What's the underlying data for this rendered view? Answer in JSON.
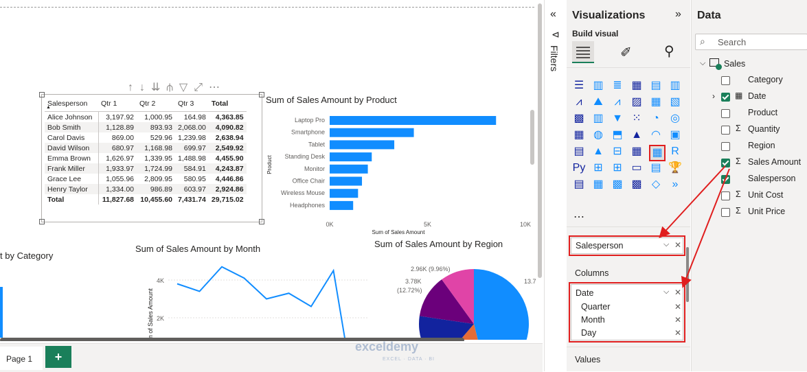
{
  "table": {
    "headers": [
      "Salesperson",
      "Qtr 1",
      "Qtr 2",
      "Qtr 3",
      "Total"
    ],
    "rows": [
      [
        "Alice Johnson",
        "3,197.92",
        "1,000.95",
        "164.98",
        "4,363.85"
      ],
      [
        "Bob Smith",
        "1,128.89",
        "893.93",
        "2,068.00",
        "4,090.82"
      ],
      [
        "Carol Davis",
        "869.00",
        "529.96",
        "1,239.98",
        "2,638.94"
      ],
      [
        "David Wilson",
        "680.97",
        "1,168.98",
        "699.97",
        "2,549.92"
      ],
      [
        "Emma Brown",
        "1,626.97",
        "1,339.95",
        "1,488.98",
        "4,455.90"
      ],
      [
        "Frank Miller",
        "1,933.97",
        "1,724.99",
        "584.91",
        "4,243.87"
      ],
      [
        "Grace Lee",
        "1,055.96",
        "2,809.95",
        "580.95",
        "4,446.86"
      ],
      [
        "Henry Taylor",
        "1,334.00",
        "986.89",
        "603.97",
        "2,924.86"
      ]
    ],
    "total": [
      "Total",
      "11,827.68",
      "10,455.60",
      "7,431.74",
      "29,715.02"
    ]
  },
  "bar_chart": {
    "title": "Sum of Sales Amount by Product",
    "ylabel": "Product",
    "xlabel": "Sum of Sales Amount",
    "ticks": [
      "0K",
      "5K",
      "10K"
    ],
    "bar_color": "#118dff"
  },
  "chart_data": [
    {
      "type": "bar",
      "orientation": "horizontal",
      "title": "Sum of Sales Amount by Product",
      "xlabel": "Sum of Sales Amount",
      "ylabel": "Product",
      "categories": [
        "Laptop Pro",
        "Smartphone",
        "Tablet",
        "Standing Desk",
        "Monitor",
        "Office Chair",
        "Wireless Mouse",
        "Headphones"
      ],
      "values": [
        8500,
        4300,
        3300,
        2150,
        1950,
        1650,
        1450,
        1200
      ],
      "xlim": [
        0,
        10000
      ]
    },
    {
      "type": "line",
      "title": "Sum of Sales Amount by Month",
      "ylabel": "Sum of Sales Amount",
      "values": [
        3800,
        3400,
        4700,
        4100,
        3000,
        3300,
        2600,
        4500,
        0
      ],
      "ylim": [
        0,
        5000
      ]
    },
    {
      "type": "pie",
      "title": "Sum of Sales Amount by Region",
      "slices": [
        {
          "label": "2.96K (9.96%)",
          "value": 2.96,
          "color": "#e044a7"
        },
        {
          "label": "3.78K (12.72%)",
          "value": 3.78,
          "color": "#6b007b"
        },
        {
          "label": "13.7",
          "value": 13.7,
          "color": "#118dff"
        },
        {
          "label": "",
          "value": 4.5,
          "color": "#e66c37"
        },
        {
          "label": "",
          "value": 4.77,
          "color": "#12239e"
        }
      ]
    }
  ],
  "line_chart": {
    "title": "Sum of Sales Amount by Month",
    "ylabel": "m of Sales Amount",
    "ticks": [
      "4K",
      "2K"
    ]
  },
  "pie_chart": {
    "title": "Sum of Sales Amount by Region",
    "labels": [
      "2.96K (9.96%)",
      "3.78K",
      "(12.72%)",
      "13.7"
    ]
  },
  "category_title": "t by Category",
  "filters": {
    "label": "Filters"
  },
  "viz": {
    "title": "Visualizations",
    "build_visual": "Build visual",
    "rows_well": "Salesperson",
    "columns_label": "Columns",
    "columns_field": "Date",
    "columns_sub": [
      "Quarter",
      "Month",
      "Day"
    ],
    "values_label": "Values"
  },
  "data_pane": {
    "title": "Data",
    "search_placeholder": "Search",
    "table": "Sales",
    "fields": [
      {
        "name": "Category",
        "checked": false,
        "sigma": false
      },
      {
        "name": "Date",
        "checked": true,
        "sigma": false
      },
      {
        "name": "Product",
        "checked": false,
        "sigma": false
      },
      {
        "name": "Quantity",
        "checked": false,
        "sigma": true
      },
      {
        "name": "Region",
        "checked": false,
        "sigma": false
      },
      {
        "name": "Sales Amount",
        "checked": true,
        "sigma": true
      },
      {
        "name": "Salesperson",
        "checked": true,
        "sigma": false
      },
      {
        "name": "Unit Cost",
        "checked": false,
        "sigma": true
      },
      {
        "name": "Unit Price",
        "checked": false,
        "sigma": true
      }
    ]
  },
  "pages": {
    "tab": "Page 1",
    "add": "+"
  },
  "watermark": {
    "brand": "exceldemy",
    "tagline": "EXCEL · DATA · BI"
  }
}
